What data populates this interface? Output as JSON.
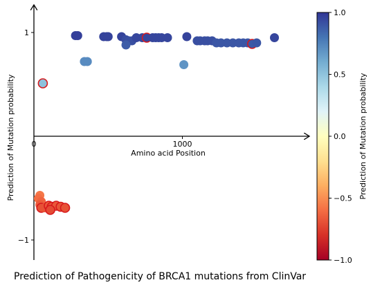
{
  "chart_data": {
    "type": "scatter",
    "caption": "Prediction of Pathogenicity of BRCA1 mutations from ClinVar",
    "xlabel": "Amino acid Position",
    "ylabel": "Prediction of Mutation probability",
    "xlim": [
      0,
      1800
    ],
    "ylim": [
      -1.1,
      1.1
    ],
    "x_ticks": [
      {
        "value": 0,
        "label": "0"
      },
      {
        "value": 1000,
        "label": "1000"
      }
    ],
    "y_ticks": [
      {
        "value": 1,
        "label": "1"
      },
      {
        "value": -1,
        "label": "−1"
      }
    ],
    "colorbar": {
      "label": "Prediction of Mutation probability",
      "range": [
        -1.0,
        1.0
      ],
      "ticks": [
        {
          "value": 1.0,
          "label": "1.0"
        },
        {
          "value": 0.5,
          "label": "0.5"
        },
        {
          "value": 0.0,
          "label": "0.0"
        },
        {
          "value": -0.5,
          "label": "−0.5"
        },
        {
          "value": -1.0,
          "label": "−1.0"
        }
      ]
    },
    "points": [
      {
        "x": 280,
        "y": 0.97,
        "outlined": false
      },
      {
        "x": 295,
        "y": 0.97,
        "outlined": false
      },
      {
        "x": 470,
        "y": 0.96,
        "outlined": false
      },
      {
        "x": 490,
        "y": 0.96,
        "outlined": false
      },
      {
        "x": 500,
        "y": 0.96,
        "outlined": false
      },
      {
        "x": 590,
        "y": 0.96,
        "outlined": false
      },
      {
        "x": 620,
        "y": 0.93,
        "outlined": false
      },
      {
        "x": 640,
        "y": 0.92,
        "outlined": false
      },
      {
        "x": 660,
        "y": 0.92,
        "outlined": false
      },
      {
        "x": 690,
        "y": 0.95,
        "outlined": false
      },
      {
        "x": 730,
        "y": 0.95,
        "outlined": false
      },
      {
        "x": 760,
        "y": 0.95,
        "outlined": true
      },
      {
        "x": 800,
        "y": 0.95,
        "outlined": false
      },
      {
        "x": 820,
        "y": 0.95,
        "outlined": false
      },
      {
        "x": 840,
        "y": 0.95,
        "outlined": false
      },
      {
        "x": 860,
        "y": 0.95,
        "outlined": false
      },
      {
        "x": 900,
        "y": 0.95,
        "outlined": false
      },
      {
        "x": 1030,
        "y": 0.96,
        "outlined": false
      },
      {
        "x": 1100,
        "y": 0.92,
        "outlined": false
      },
      {
        "x": 1120,
        "y": 0.92,
        "outlined": false
      },
      {
        "x": 1150,
        "y": 0.92,
        "outlined": false
      },
      {
        "x": 1170,
        "y": 0.92,
        "outlined": false
      },
      {
        "x": 1200,
        "y": 0.92,
        "outlined": false
      },
      {
        "x": 1230,
        "y": 0.9,
        "outlined": false
      },
      {
        "x": 1260,
        "y": 0.9,
        "outlined": false
      },
      {
        "x": 1300,
        "y": 0.9,
        "outlined": false
      },
      {
        "x": 1340,
        "y": 0.9,
        "outlined": false
      },
      {
        "x": 1380,
        "y": 0.9,
        "outlined": false
      },
      {
        "x": 1410,
        "y": 0.9,
        "outlined": false
      },
      {
        "x": 1440,
        "y": 0.9,
        "outlined": false
      },
      {
        "x": 1470,
        "y": 0.89,
        "outlined": true
      },
      {
        "x": 1500,
        "y": 0.9,
        "outlined": false
      },
      {
        "x": 1620,
        "y": 0.95,
        "outlined": false
      },
      {
        "x": 620,
        "y": 0.88,
        "outlined": false
      },
      {
        "x": 340,
        "y": 0.72,
        "outlined": false
      },
      {
        "x": 360,
        "y": 0.72,
        "outlined": false
      },
      {
        "x": 1010,
        "y": 0.69,
        "outlined": false
      },
      {
        "x": 60,
        "y": 0.51,
        "outlined": true
      },
      {
        "x": 40,
        "y": -0.57,
        "outlined": false
      },
      {
        "x": 30,
        "y": -0.6,
        "outlined": false
      },
      {
        "x": 50,
        "y": -0.63,
        "outlined": false
      },
      {
        "x": 40,
        "y": -0.66,
        "outlined": false
      },
      {
        "x": 50,
        "y": -0.69,
        "outlined": true
      },
      {
        "x": 70,
        "y": -0.69,
        "outlined": false
      },
      {
        "x": 100,
        "y": -0.67,
        "outlined": true
      },
      {
        "x": 120,
        "y": -0.68,
        "outlined": true
      },
      {
        "x": 150,
        "y": -0.67,
        "outlined": true
      },
      {
        "x": 180,
        "y": -0.68,
        "outlined": true
      },
      {
        "x": 210,
        "y": -0.69,
        "outlined": true
      },
      {
        "x": 110,
        "y": -0.71,
        "outlined": true
      }
    ]
  }
}
